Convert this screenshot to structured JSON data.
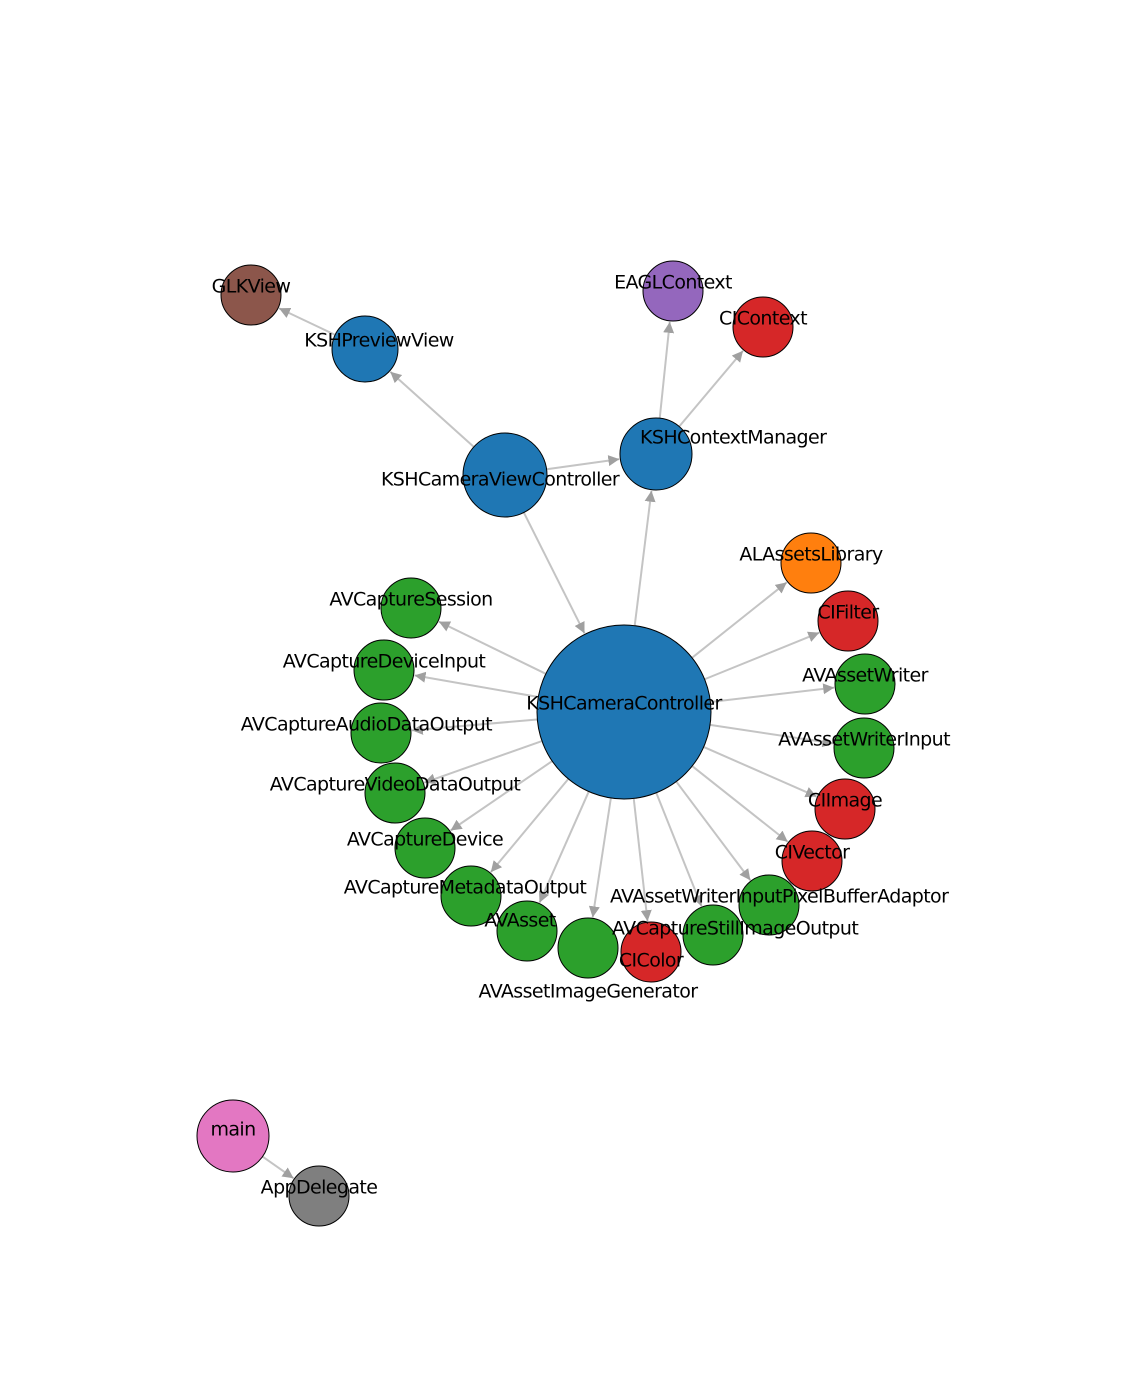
{
  "colors": {
    "blue": "#1f77b4",
    "green": "#2ca02c",
    "red": "#d62728",
    "orange": "#ff7f0e",
    "purple": "#9467bd",
    "brown": "#8c564b",
    "pink": "#e377c2",
    "gray": "#7f7f7f",
    "edge": "#c4c4c4",
    "arrow": "#a0a0a0"
  },
  "nodes": [
    {
      "id": "GLKView",
      "label": "GLKView",
      "color": "brown"
    },
    {
      "id": "KSHPreviewView",
      "label": "KSHPreviewView",
      "color": "blue"
    },
    {
      "id": "EAGLContext",
      "label": "EAGLContext",
      "color": "purple"
    },
    {
      "id": "CIContext",
      "label": "CIContext",
      "color": "red"
    },
    {
      "id": "KSHCameraViewController",
      "label": "KSHCameraViewController",
      "color": "blue"
    },
    {
      "id": "KSHContextManager",
      "label": "KSHContextManager",
      "color": "blue"
    },
    {
      "id": "KSHCameraController",
      "label": "KSHCameraController",
      "color": "blue"
    },
    {
      "id": "ALAssetsLibrary",
      "label": "ALAssetsLibrary",
      "color": "orange"
    },
    {
      "id": "CIFilter",
      "label": "CIFilter",
      "color": "red"
    },
    {
      "id": "AVAssetWriter",
      "label": "AVAssetWriter",
      "color": "green"
    },
    {
      "id": "AVAssetWriterInput",
      "label": "AVAssetWriterInput",
      "color": "green"
    },
    {
      "id": "CIImage",
      "label": "CIImage",
      "color": "red"
    },
    {
      "id": "CIVector",
      "label": "CIVector",
      "color": "red"
    },
    {
      "id": "AVAssetWriterInputPixelBufferAdaptor",
      "label": "AVAssetWriterInputPixelBufferAdaptor",
      "color": "green"
    },
    {
      "id": "AVCaptureStillImageOutput",
      "label": "AVCaptureStillImageOutput",
      "color": "green"
    },
    {
      "id": "CIColor",
      "label": "CIColor",
      "color": "red"
    },
    {
      "id": "AVAssetImageGenerator",
      "label": "AVAssetImageGenerator",
      "color": "green"
    },
    {
      "id": "AVAsset",
      "label": "AVAsset",
      "color": "green"
    },
    {
      "id": "AVCaptureMetadataOutput",
      "label": "AVCaptureMetadataOutput",
      "color": "green"
    },
    {
      "id": "AVCaptureDevice",
      "label": "AVCaptureDevice",
      "color": "green"
    },
    {
      "id": "AVCaptureVideoDataOutput",
      "label": "AVCaptureVideoDataOutput",
      "color": "green"
    },
    {
      "id": "AVCaptureAudioDataOutput",
      "label": "AVCaptureAudioDataOutput",
      "color": "green"
    },
    {
      "id": "AVCaptureDeviceInput",
      "label": "AVCaptureDeviceInput",
      "color": "green"
    },
    {
      "id": "AVCaptureSession",
      "label": "AVCaptureSession",
      "color": "green"
    },
    {
      "id": "main",
      "label": "main",
      "color": "pink"
    },
    {
      "id": "AppDelegate",
      "label": "AppDelegate",
      "color": "gray"
    }
  ],
  "edges": [
    [
      "KSHPreviewView",
      "GLKView"
    ],
    [
      "KSHCameraViewController",
      "KSHPreviewView"
    ],
    [
      "KSHCameraViewController",
      "KSHContextManager"
    ],
    [
      "KSHCameraViewController",
      "KSHCameraController"
    ],
    [
      "KSHContextManager",
      "EAGLContext"
    ],
    [
      "KSHContextManager",
      "CIContext"
    ],
    [
      "KSHCameraController",
      "KSHContextManager"
    ],
    [
      "KSHCameraController",
      "ALAssetsLibrary"
    ],
    [
      "KSHCameraController",
      "CIFilter"
    ],
    [
      "KSHCameraController",
      "AVAssetWriter"
    ],
    [
      "KSHCameraController",
      "AVAssetWriterInput"
    ],
    [
      "KSHCameraController",
      "CIImage"
    ],
    [
      "KSHCameraController",
      "CIVector"
    ],
    [
      "KSHCameraController",
      "AVAssetWriterInputPixelBufferAdaptor"
    ],
    [
      "KSHCameraController",
      "AVCaptureStillImageOutput"
    ],
    [
      "KSHCameraController",
      "CIColor"
    ],
    [
      "KSHCameraController",
      "AVAssetImageGenerator"
    ],
    [
      "KSHCameraController",
      "AVAsset"
    ],
    [
      "KSHCameraController",
      "AVCaptureMetadataOutput"
    ],
    [
      "KSHCameraController",
      "AVCaptureDevice"
    ],
    [
      "KSHCameraController",
      "AVCaptureVideoDataOutput"
    ],
    [
      "KSHCameraController",
      "AVCaptureAudioDataOutput"
    ],
    [
      "KSHCameraController",
      "AVCaptureDeviceInput"
    ],
    [
      "KSHCameraController",
      "AVCaptureSession"
    ],
    [
      "main",
      "AppDelegate"
    ]
  ]
}
